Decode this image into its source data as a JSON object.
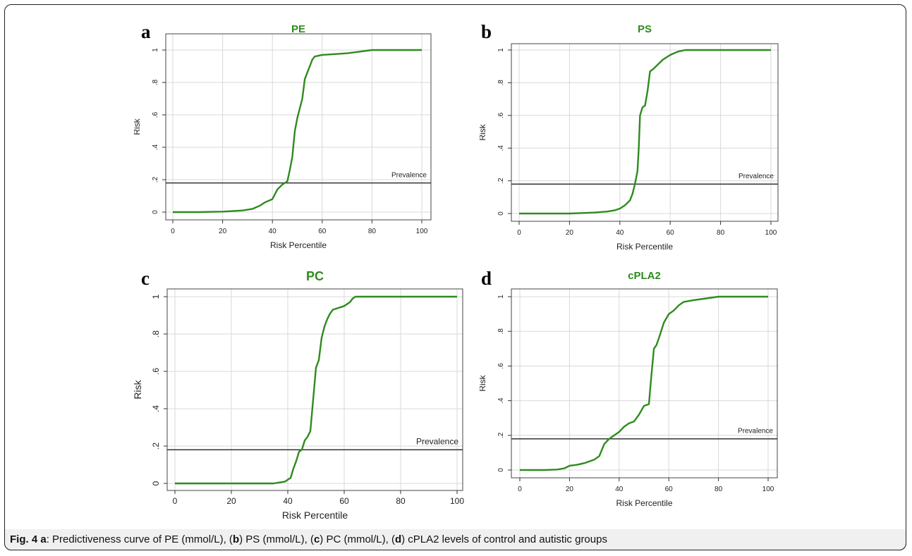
{
  "chart_data": [
    {
      "type": "line",
      "panel": "a",
      "title": "PE",
      "xlabel": "Risk Percentile",
      "ylabel": "Risk",
      "xlim": [
        0,
        100
      ],
      "ylim": [
        0,
        1
      ],
      "xticks": [
        "0",
        "20",
        "40",
        "60",
        "80",
        "100"
      ],
      "yticks": [
        "0",
        ".2",
        ".4",
        ".6",
        ".8",
        "1"
      ],
      "grid": true,
      "reference_line": {
        "label": "Prevalence",
        "value": 0.18
      },
      "series": [
        {
          "x": [
            0,
            10,
            20,
            28,
            32,
            35,
            37,
            40,
            42,
            44,
            46,
            47,
            48,
            49,
            50,
            52,
            53,
            54,
            55,
            56,
            57,
            60,
            65,
            70,
            75,
            80,
            90,
            100
          ],
          "y": [
            0,
            0,
            0.003,
            0.01,
            0.02,
            0.04,
            0.06,
            0.08,
            0.14,
            0.17,
            0.19,
            0.26,
            0.34,
            0.5,
            0.58,
            0.7,
            0.82,
            0.86,
            0.9,
            0.94,
            0.96,
            0.97,
            0.975,
            0.98,
            0.99,
            1,
            1,
            1
          ],
          "color": "#2e8b1e"
        }
      ]
    },
    {
      "type": "line",
      "panel": "b",
      "title": "PS",
      "xlabel": "Risk Percentile",
      "ylabel": "Risk",
      "xlim": [
        0,
        100
      ],
      "ylim": [
        0,
        1
      ],
      "xticks": [
        "0",
        "20",
        "40",
        "60",
        "80",
        "100"
      ],
      "yticks": [
        "0",
        ".2",
        ".4",
        ".6",
        ".8",
        "1"
      ],
      "grid": true,
      "reference_line": {
        "label": "Prevalence",
        "value": 0.18
      },
      "series": [
        {
          "x": [
            0,
            10,
            20,
            25,
            30,
            35,
            38,
            40,
            42,
            44,
            45,
            46,
            47,
            47.5,
            48,
            49,
            50,
            51,
            52,
            53,
            55,
            57,
            60,
            63,
            66,
            70,
            80,
            100
          ],
          "y": [
            0,
            0,
            0,
            0.003,
            0.006,
            0.012,
            0.02,
            0.03,
            0.05,
            0.08,
            0.12,
            0.18,
            0.26,
            0.4,
            0.6,
            0.65,
            0.66,
            0.75,
            0.87,
            0.88,
            0.91,
            0.94,
            0.97,
            0.99,
            1,
            1,
            1,
            1
          ],
          "color": "#2e8b1e"
        }
      ]
    },
    {
      "type": "line",
      "panel": "c",
      "title": "PC",
      "xlabel": "Risk Percentile",
      "ylabel": "Risk",
      "xlim": [
        0,
        100
      ],
      "ylim": [
        0,
        1
      ],
      "xticks": [
        "0",
        "20",
        "40",
        "60",
        "80",
        "100"
      ],
      "yticks": [
        "0",
        ".2",
        ".4",
        ".6",
        ".8",
        "1"
      ],
      "grid": true,
      "reference_line": {
        "label": "Prevalence",
        "value": 0.18
      },
      "series": [
        {
          "x": [
            0,
            20,
            35,
            37,
            39,
            41,
            42,
            43,
            44,
            45,
            46,
            47,
            48,
            49,
            50,
            51,
            52,
            53,
            54,
            55,
            56,
            58,
            60,
            62,
            63,
            64,
            70,
            80,
            100
          ],
          "y": [
            0,
            0,
            0,
            0.005,
            0.01,
            0.03,
            0.08,
            0.12,
            0.17,
            0.18,
            0.23,
            0.25,
            0.28,
            0.45,
            0.62,
            0.66,
            0.78,
            0.84,
            0.88,
            0.91,
            0.93,
            0.94,
            0.95,
            0.97,
            0.99,
            1,
            1,
            1,
            1
          ],
          "color": "#2e8b1e"
        }
      ]
    },
    {
      "type": "line",
      "panel": "d",
      "title": "cPLA2",
      "xlabel": "Risk Percentile",
      "ylabel": "Risk",
      "xlim": [
        0,
        100
      ],
      "ylim": [
        0,
        1
      ],
      "xticks": [
        "0",
        "20",
        "40",
        "60",
        "80",
        "100"
      ],
      "yticks": [
        "0",
        ".2",
        ".4",
        ".6",
        ".8",
        "1"
      ],
      "grid": true,
      "reference_line": {
        "label": "Prevalence",
        "value": 0.18
      },
      "series": [
        {
          "x": [
            0,
            10,
            15,
            18,
            20,
            23,
            26,
            30,
            32,
            34,
            36,
            38,
            40,
            42,
            44,
            46,
            48,
            50,
            52,
            53,
            54,
            55,
            56,
            58,
            60,
            62,
            64,
            66,
            70,
            75,
            80,
            100
          ],
          "y": [
            0,
            0,
            0.003,
            0.01,
            0.025,
            0.03,
            0.04,
            0.06,
            0.08,
            0.15,
            0.18,
            0.2,
            0.22,
            0.25,
            0.27,
            0.28,
            0.32,
            0.37,
            0.38,
            0.55,
            0.7,
            0.72,
            0.76,
            0.85,
            0.9,
            0.92,
            0.95,
            0.97,
            0.98,
            0.99,
            1,
            1
          ],
          "color": "#2e8b1e"
        }
      ]
    }
  ],
  "caption": {
    "fig": "Fig. 4",
    "a": "a",
    "t1": ": Predictiveness curve of PE (mmol/L), (",
    "b": "b",
    "t2": ") PS (mmol/L), (",
    "c": "c",
    "t3": ") PC (mmol/L), (",
    "d": "d",
    "t4": ") cPLA2 levels of control and autistic groups"
  }
}
